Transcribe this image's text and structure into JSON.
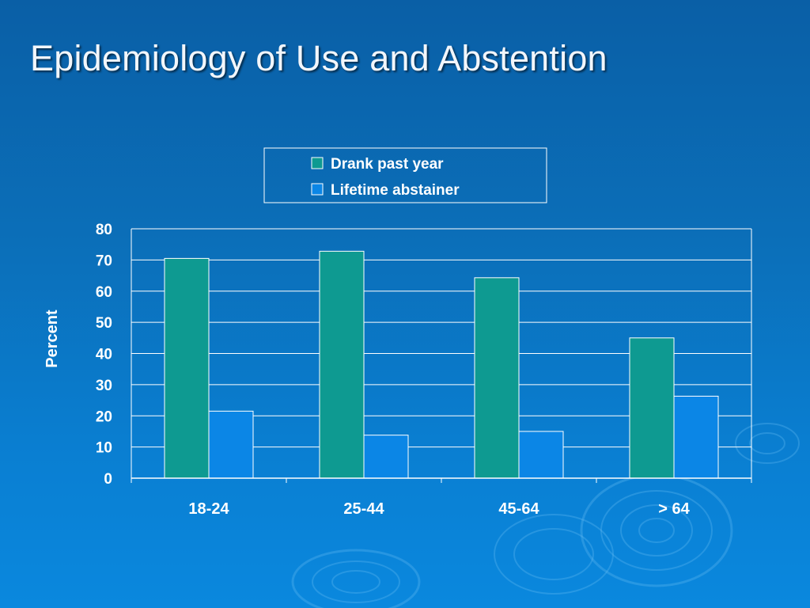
{
  "slide": {
    "title": "Epidemiology of Use and Abstention"
  },
  "colors": {
    "background": "#0b6fb9",
    "drank_series": "#0e9a91",
    "abstainer_series": "#0b86e6",
    "gridline": "#ffffff"
  },
  "chart_data": {
    "type": "bar",
    "title": "",
    "xlabel": "",
    "ylabel": "Percent",
    "categories": [
      "18-24",
      "25-44",
      "45-64",
      "> 64"
    ],
    "series": [
      {
        "name": "Drank past year",
        "values": [
          70.5,
          72.8,
          64.3,
          45.0
        ]
      },
      {
        "name": "Lifetime abstainer",
        "values": [
          21.5,
          13.8,
          15.0,
          26.3
        ]
      }
    ],
    "ylim": [
      0,
      80
    ],
    "yticks": [
      0,
      10,
      20,
      30,
      40,
      50,
      60,
      70,
      80
    ],
    "grid": true,
    "legend_position": "top-center"
  }
}
